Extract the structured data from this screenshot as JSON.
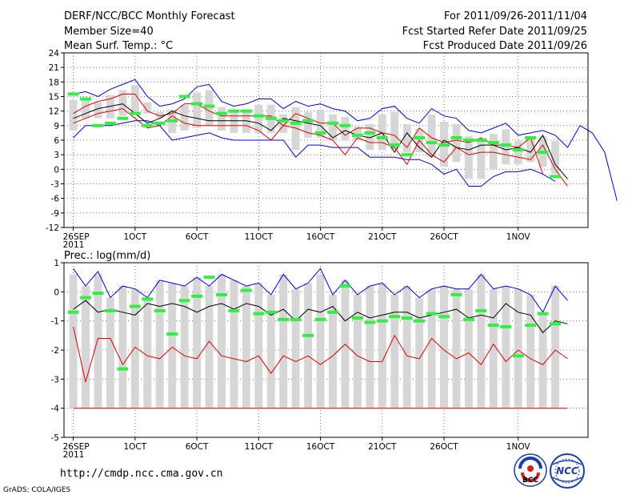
{
  "header": {
    "left": [
      "DERF/NCC/BCC Monthly Forecast",
      "Member Size=40",
      "Mean Surf. Temp.: °C"
    ],
    "right": [
      "For 2011/09/26-2011/11/04",
      "Fcst Started Refer Date 2011/09/25",
      "Fcst Produced Date 2011/09/26"
    ]
  },
  "footer": {
    "url": "http://cmdp.ncc.cma.gov.cn",
    "credit": "GrADS: COLA/IGES",
    "logo_bcc": "BCC",
    "logo_ncc": "NCC"
  },
  "colors": {
    "max": "#0000dd",
    "p75": "#dd0000",
    "mean": "#000000",
    "obs": "#33ee44",
    "box": "#d6d6d6",
    "grid": "#555555"
  },
  "chart_data": [
    {
      "type": "box-plume",
      "title": "Mean Surf. Temp.: °C",
      "ylim": [
        -12,
        24
      ],
      "yticks": [
        -12,
        -9,
        -6,
        -3,
        0,
        3,
        6,
        9,
        12,
        15,
        18,
        21,
        24
      ],
      "xtick_labels": [
        "26SEP",
        "1OCT",
        "6OCT",
        "11OCT",
        "16OCT",
        "21OCT",
        "26OCT",
        "1NOV"
      ],
      "xtick_days": [
        0,
        5,
        10,
        15,
        20,
        25,
        30,
        36
      ],
      "year_label": "2011",
      "days": 39,
      "series": [
        {
          "name": "max",
          "values": [
            6.5,
            9,
            9,
            9,
            9.5,
            10,
            10,
            9,
            6,
            6.5,
            7,
            7.5,
            6.5,
            6,
            6,
            6,
            6,
            6,
            2.5,
            5,
            5,
            4.5,
            4.5,
            4.5,
            2.5,
            2.5,
            2.5,
            2,
            2,
            1,
            -1,
            0,
            -3.5,
            -3.5,
            -1.5,
            -0.5,
            -0.5,
            0,
            -1,
            -2.5
          ]
        },
        {
          "name": "upper",
          "values": [
            15.5,
            16,
            15,
            16.5,
            17.5,
            18.5,
            15,
            13,
            13.5,
            14.5,
            17,
            17.5,
            14,
            13,
            13.5,
            14.5,
            14.5,
            12.5,
            14,
            13,
            13.5,
            12.5,
            12,
            10,
            10.5,
            12.5,
            13,
            10.5,
            9.5,
            12.5,
            11,
            10.5,
            8,
            7.5,
            8.5,
            9.5,
            7,
            7.5,
            8,
            7,
            4.5,
            9,
            7.5,
            3.5,
            -6.5
          ]
        },
        {
          "name": "p75",
          "values": [
            11.5,
            13,
            14,
            14.5,
            15.5,
            15.5,
            12,
            11,
            11.5,
            13.5,
            13.5,
            12,
            11,
            11,
            11,
            11,
            11,
            9,
            11.5,
            10.5,
            9.5,
            9.5,
            7,
            8.5,
            8.5,
            7.5,
            7,
            4.5,
            8.5,
            6.5,
            5.5,
            6,
            5.5,
            6.5,
            5,
            5,
            4.5,
            6.5,
            -1
          ]
        },
        {
          "name": "mean",
          "values": [
            10.5,
            11.5,
            12.5,
            13,
            13.5,
            11.5,
            9.5,
            10.5,
            12,
            11,
            10.5,
            10,
            10,
            10,
            10,
            9.5,
            8,
            10.5,
            10,
            9.5,
            9,
            6.5,
            8,
            7,
            6.5,
            7.5,
            3.5,
            7.5,
            4.5,
            2.5,
            6,
            4.5,
            4,
            5,
            5,
            4,
            4.5,
            3.5,
            7,
            1,
            -2
          ]
        },
        {
          "name": "p25",
          "values": [
            9.5,
            10.5,
            11.5,
            12,
            12.5,
            10.5,
            8.5,
            9,
            11,
            9.5,
            9,
            9,
            9,
            9,
            9,
            8,
            6,
            9,
            8.5,
            7.5,
            7,
            6,
            3,
            6.5,
            5.5,
            5.5,
            4.5,
            1,
            6,
            3,
            1.5,
            4.5,
            3,
            3.5,
            3.5,
            3,
            2.5,
            2,
            5,
            0,
            -3.5
          ]
        }
      ],
      "obs": [
        15.5,
        14.5,
        9,
        9.5,
        10.5,
        11.5,
        9,
        9.5,
        10,
        15,
        13.5,
        13,
        11.5,
        12,
        12,
        11,
        10.5,
        10,
        9.5,
        10,
        7.5,
        9.5,
        9,
        7,
        7.5,
        6.5,
        5,
        3,
        6.5,
        5.5,
        5,
        6.5,
        6,
        6,
        5.5,
        5,
        4,
        6.5,
        3.5,
        -1.5
      ]
    },
    {
      "type": "box-plume",
      "title": "Prec.: log(mm/d)",
      "ylim": [
        -5,
        1
      ],
      "yticks": [
        -5,
        -4,
        -3,
        -2,
        -1,
        0,
        1
      ],
      "xtick_labels": [
        "26SEP",
        "1OCT",
        "6OCT",
        "11OCT",
        "16OCT",
        "21OCT",
        "26OCT",
        "1NOV"
      ],
      "xtick_days": [
        0,
        5,
        10,
        15,
        20,
        25,
        30,
        36
      ],
      "year_label": "2011",
      "days": 39,
      "series": [
        {
          "name": "max",
          "values": [
            0.8,
            0.2,
            0.7,
            -0.2,
            0.2,
            0.1,
            -0.2,
            0.4,
            0.3,
            0.2,
            0.5,
            0.2,
            0.6,
            0.4,
            0.2,
            0.3,
            -0.1,
            0.6,
            0.1,
            0.3,
            0.8,
            -0.1,
            0.4,
            -0.1,
            0.2,
            0.3,
            -0.1,
            0.2,
            -0.2,
            0.1,
            0.2,
            0.1,
            0.1,
            0.6,
            0.1,
            0.2,
            0.1,
            -0.1,
            -0.7,
            0.2,
            -0.3
          ]
        },
        {
          "name": "mean",
          "values": [
            -0.6,
            -0.3,
            -0.7,
            -0.6,
            -0.7,
            -0.8,
            -0.4,
            -0.5,
            -0.4,
            -0.5,
            -0.7,
            -0.5,
            -0.4,
            -0.6,
            -0.4,
            -0.5,
            -0.8,
            -0.6,
            -1,
            -0.6,
            -0.7,
            -0.5,
            -1,
            -0.7,
            -0.9,
            -0.8,
            -0.7,
            -0.7,
            -0.9,
            -0.8,
            -0.7,
            -0.6,
            -0.9,
            -0.8,
            -0.9,
            -0.4,
            -0.7,
            -0.8,
            -1.4,
            -1,
            -1.1
          ]
        },
        {
          "name": "p25",
          "values": [
            -1.2,
            -3.1,
            -1.6,
            -1.6,
            -2.5,
            -1.9,
            -2.2,
            -2.3,
            -1.9,
            -2.2,
            -2.3,
            -1.7,
            -2.2,
            -2.3,
            -2.4,
            -2.2,
            -2.8,
            -2.2,
            -2.4,
            -2.2,
            -2.5,
            -2.2,
            -1.8,
            -2.2,
            -2.4,
            -2.4,
            -1.5,
            -2.2,
            -2.3,
            -1.6,
            -2,
            -2.3,
            -2.1,
            -2.5,
            -1.8,
            -2.4,
            -2,
            -2.3,
            -2.5,
            -2,
            -2.3
          ]
        },
        {
          "name": "min",
          "values": [
            -4,
            -4,
            -4,
            -4,
            -4,
            -4,
            -4,
            -4,
            -4,
            -4,
            -4,
            -4,
            -4,
            -4,
            -4,
            -4,
            -4,
            -4,
            -4,
            -4,
            -4,
            -4,
            -4,
            -4,
            -4,
            -4,
            -4,
            -4,
            -4,
            -4,
            -4,
            -4,
            -4,
            -4,
            -4,
            -4,
            -4,
            -4,
            -4,
            -4,
            -4
          ]
        }
      ],
      "obs": [
        -0.7,
        -0.2,
        -0.05,
        -0.65,
        -2.65,
        -0.5,
        -0.25,
        -0.65,
        -1.45,
        -0.3,
        -0.15,
        0.5,
        -0.1,
        -0.65,
        0.05,
        -0.75,
        -0.7,
        -0.95,
        -0.95,
        -1.5,
        -0.95,
        -0.7,
        0.2,
        -0.9,
        -1.05,
        -1.0,
        -0.85,
        -0.9,
        -1.0,
        -0.75,
        -0.85,
        -0.1,
        -0.95,
        -0.65,
        -1.15,
        -1.2,
        -2.2,
        -1.15,
        -0.75,
        -1.1
      ]
    }
  ]
}
